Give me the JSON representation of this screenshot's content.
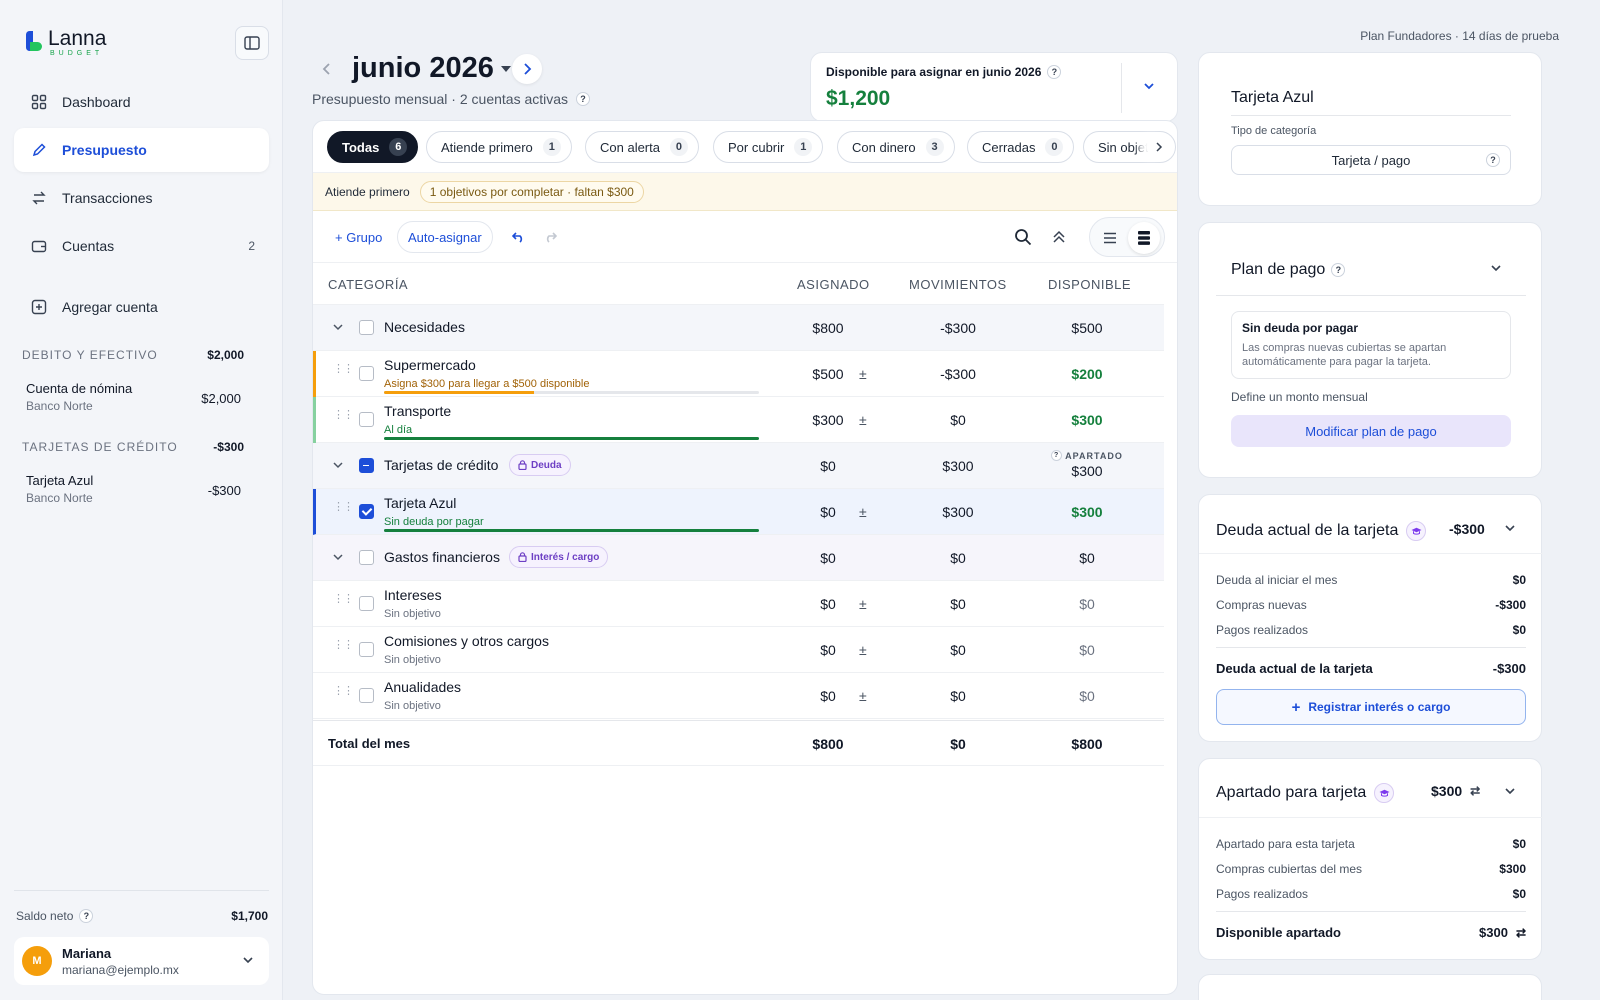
{
  "brand": {
    "name": "Lanna",
    "sub": "BUDGET"
  },
  "nav": [
    {
      "label": "Dashboard",
      "icon": "grid-icon"
    },
    {
      "label": "Presupuesto",
      "icon": "pencil-icon",
      "active": true
    },
    {
      "label": "Transacciones",
      "icon": "transfer-icon"
    },
    {
      "label": "Cuentas",
      "icon": "wallet-icon",
      "count": "2"
    },
    {
      "label": "Agregar cuenta",
      "icon": "plus-square-icon"
    }
  ],
  "accounts": {
    "debit_head": "DEBITO Y EFECTIVO",
    "debit_total": "$2,000",
    "debit_items": [
      {
        "name": "Cuenta de nómina",
        "bank": "Banco Norte",
        "value": "$2,000"
      }
    ],
    "credit_head": "TARJETAS DE CRÉDITO",
    "credit_total": "-$300",
    "credit_items": [
      {
        "name": "Tarjeta Azul",
        "bank": "Banco Norte",
        "value": "-$300"
      }
    ]
  },
  "net": {
    "label": "Saldo neto",
    "value": "$1,700"
  },
  "user": {
    "initial": "M",
    "name": "Mariana",
    "email": "mariana@ejemplo.mx"
  },
  "plan_info": "Plan Fundadores  ·  14 días de prueba",
  "header": {
    "month": "junio 2026",
    "subtitle": "Presupuesto mensual · 2 cuentas activas"
  },
  "available": {
    "label": "Disponible para asignar en junio 2026",
    "amount": "$1,200"
  },
  "filters": [
    {
      "label": "Todas",
      "count": "6",
      "active": true
    },
    {
      "label": "Atiende primero",
      "count": "1"
    },
    {
      "label": "Con alerta",
      "count": "0"
    },
    {
      "label": "Por cubrir",
      "count": "1"
    },
    {
      "label": "Con dinero",
      "count": "3"
    },
    {
      "label": "Cerradas",
      "count": "0"
    },
    {
      "label": "Sin objetivo",
      "count": ""
    }
  ],
  "alert": {
    "label": "Atiende primero",
    "pill": "1 objetivos por completar · faltan $300"
  },
  "toolbar": {
    "group": "+ Grupo",
    "auto": "Auto-asignar"
  },
  "columns": {
    "category": "CATEGORÍA",
    "assigned": "ASIGNADO",
    "activity": "MOVIMIENTOS",
    "available": "DISPONIBLE"
  },
  "rows": [
    {
      "type": "group",
      "name": "Necesidades",
      "assigned": "$800",
      "activity": "-$300",
      "available": "$500"
    },
    {
      "type": "item",
      "name": "Supermercado",
      "status": "Asigna $300 para llegar a $500 disponible",
      "status_color": "#a16207",
      "bar_color": "#f59e0b",
      "progress": 40,
      "assigned": "$500",
      "activity": "-$300",
      "available": "$200",
      "avail_color": "#15803d",
      "accent": "#f59e0b"
    },
    {
      "type": "item",
      "name": "Transporte",
      "status": "Al día",
      "status_color": "#15803d",
      "bar_color": "#15803d",
      "progress": 100,
      "assigned": "$300",
      "activity": "$0",
      "available": "$300",
      "avail_color": "#15803d",
      "accent": "#86d19f"
    },
    {
      "type": "group",
      "name": "Tarjetas de crédito",
      "tag": "Deuda",
      "assigned": "$0",
      "activity": "$300",
      "available": "$300",
      "avail_note": "APARTADO"
    },
    {
      "type": "item",
      "name": "Tarjeta Azul",
      "status": "Sin deuda por pagar",
      "status_color": "#15803d",
      "bar_color": "#15803d",
      "progress": 100,
      "assigned": "$0",
      "activity": "$300",
      "available": "$300",
      "avail_color": "#15803d",
      "selected": true
    },
    {
      "type": "group",
      "name": "Gastos financieros",
      "tag": "Interés / cargo",
      "assigned": "$0",
      "activity": "$0",
      "available": "$0"
    },
    {
      "type": "item",
      "name": "Intereses",
      "status": "Sin objetivo",
      "status_color": "#6b7280",
      "assigned": "$0",
      "activity": "$0",
      "available": "$0",
      "avail_color": "#6b7280"
    },
    {
      "type": "item",
      "name": "Comisiones y otros cargos",
      "status": "Sin objetivo",
      "status_color": "#6b7280",
      "assigned": "$0",
      "activity": "$0",
      "available": "$0",
      "avail_color": "#6b7280"
    },
    {
      "type": "item",
      "name": "Anualidades",
      "status": "Sin objetivo",
      "status_color": "#6b7280",
      "assigned": "$0",
      "activity": "$0",
      "available": "$0",
      "avail_color": "#6b7280"
    }
  ],
  "total": {
    "label": "Total del mes",
    "assigned": "$800",
    "activity": "$0",
    "available": "$800"
  },
  "panel_card": {
    "title": "Tarjeta Azul",
    "type_label": "Tipo de categoría",
    "type_value": "Tarjeta / pago"
  },
  "payment_plan": {
    "title": "Plan de pago",
    "box_title": "Sin deuda por pagar",
    "box_text": "Las compras nuevas cubiertas se apartan automáticamente para pagar la tarjeta.",
    "define": "Define un monto mensual",
    "button": "Modificar plan de pago"
  },
  "debt": {
    "title": "Deuda actual de la tarjeta",
    "amount": "-$300",
    "lines": [
      {
        "k": "Deuda al iniciar el mes",
        "v": "$0"
      },
      {
        "k": "Compras nuevas",
        "v": "-$300"
      },
      {
        "k": "Pagos realizados",
        "v": "$0"
      }
    ],
    "total_label": "Deuda actual de la tarjeta",
    "total_value": "-$300",
    "button": "Registrar interés o cargo"
  },
  "reserved": {
    "title": "Apartado para tarjeta",
    "amount": "$300",
    "lines": [
      {
        "k": "Apartado para esta tarjeta",
        "v": "$0"
      },
      {
        "k": "Compras cubiertas del mes",
        "v": "$300"
      },
      {
        "k": "Pagos realizados",
        "v": "$0"
      }
    ],
    "total_label": "Disponible apartado",
    "total_value": "$300"
  }
}
